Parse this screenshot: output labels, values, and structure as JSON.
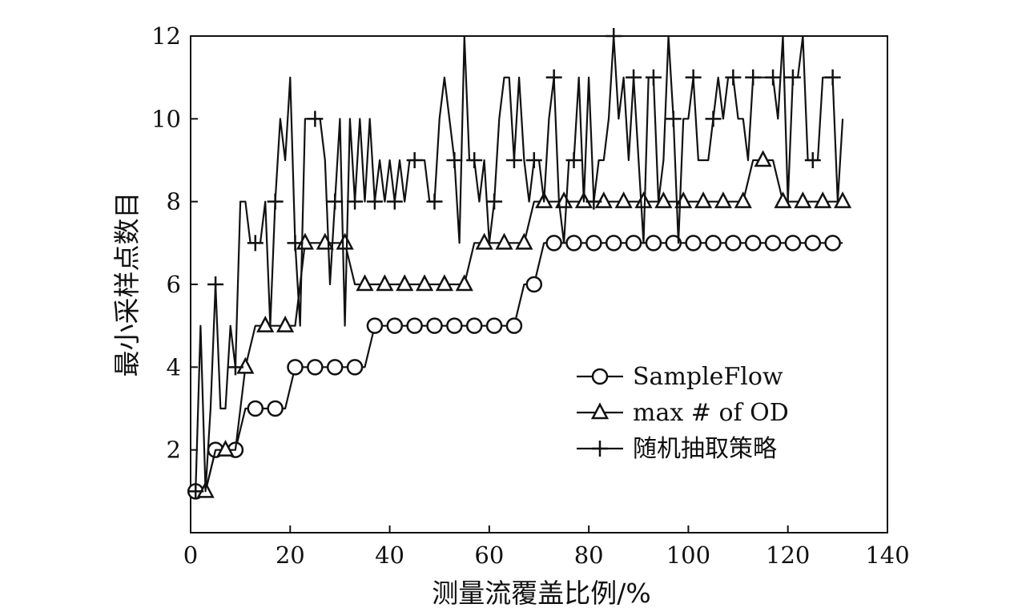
{
  "chart_data": {
    "type": "line",
    "xlabel": "测量流覆盖比例/%",
    "ylabel": "最小采样点数目",
    "xlim": [
      0,
      140
    ],
    "ylim": [
      0,
      12
    ],
    "xticks": [
      0,
      20,
      40,
      60,
      80,
      100,
      120,
      140
    ],
    "yticks": [
      2,
      4,
      6,
      8,
      10,
      12
    ],
    "xtick_labels": [
      "0",
      "20",
      "40",
      "60",
      "80",
      "100",
      "120",
      "140"
    ],
    "ytick_labels": [
      "2",
      "4",
      "6",
      "8",
      "10",
      "12"
    ],
    "grid": false,
    "legend_position": "bottom-right",
    "series": [
      {
        "name": "SampleFlow",
        "marker": "circle",
        "x": [
          1,
          3,
          5,
          7,
          9,
          11,
          13,
          15,
          17,
          19,
          21,
          23,
          25,
          27,
          29,
          31,
          33,
          35,
          37,
          39,
          41,
          43,
          45,
          47,
          49,
          51,
          53,
          55,
          57,
          59,
          61,
          63,
          65,
          67,
          69,
          71,
          73,
          75,
          77,
          79,
          81,
          83,
          85,
          87,
          89,
          91,
          93,
          95,
          97,
          99,
          101,
          103,
          105,
          107,
          109,
          111,
          113,
          115,
          117,
          119,
          121,
          123,
          125,
          127,
          129,
          131
        ],
        "values": [
          1,
          1,
          2,
          2,
          2,
          3,
          3,
          3,
          3,
          3,
          4,
          4,
          4,
          4,
          4,
          4,
          4,
          4,
          5,
          5,
          5,
          5,
          5,
          5,
          5,
          5,
          5,
          5,
          5,
          5,
          5,
          5,
          5,
          6,
          6,
          7,
          7,
          7,
          7,
          7,
          7,
          7,
          7,
          7,
          7,
          7,
          7,
          7,
          7,
          7,
          7,
          7,
          7,
          7,
          7,
          7,
          7,
          7,
          7,
          7,
          7,
          7,
          7,
          7,
          7,
          7
        ],
        "marker_every": 2,
        "marker_offset": 0
      },
      {
        "name": "max # of OD",
        "marker": "triangle",
        "x": [
          1,
          3,
          5,
          7,
          9,
          11,
          13,
          15,
          17,
          19,
          21,
          23,
          25,
          27,
          29,
          31,
          33,
          35,
          37,
          39,
          41,
          43,
          45,
          47,
          49,
          51,
          53,
          55,
          57,
          59,
          61,
          63,
          65,
          67,
          69,
          71,
          73,
          75,
          77,
          79,
          81,
          83,
          85,
          87,
          89,
          91,
          93,
          95,
          97,
          99,
          101,
          103,
          105,
          107,
          109,
          111,
          113,
          115,
          117,
          119,
          121,
          123,
          125,
          127,
          129,
          131
        ],
        "values": [
          1,
          1,
          2,
          2,
          2,
          4,
          5,
          5,
          5,
          5,
          5,
          7,
          7,
          7,
          7,
          7,
          6,
          6,
          6,
          6,
          6,
          6,
          6,
          6,
          6,
          6,
          6,
          6,
          7,
          7,
          7,
          7,
          7,
          7,
          8,
          8,
          8,
          8,
          8,
          8,
          8,
          8,
          8,
          8,
          8,
          8,
          8,
          8,
          8,
          8,
          8,
          8,
          8,
          8,
          8,
          8,
          9,
          9,
          9,
          8,
          8,
          8,
          8,
          8,
          8,
          8
        ],
        "marker_every": 2,
        "marker_offset": 1
      },
      {
        "name": "随机抽取策略",
        "marker": "plus",
        "x": [
          1,
          2,
          3,
          4,
          5,
          6,
          7,
          8,
          9,
          10,
          11,
          12,
          13,
          14,
          15,
          16,
          17,
          18,
          19,
          20,
          21,
          22,
          23,
          24,
          25,
          26,
          27,
          28,
          29,
          30,
          31,
          32,
          33,
          34,
          35,
          36,
          37,
          38,
          39,
          40,
          41,
          42,
          43,
          44,
          45,
          46,
          47,
          48,
          49,
          50,
          51,
          52,
          53,
          54,
          55,
          56,
          57,
          58,
          59,
          60,
          61,
          62,
          63,
          64,
          65,
          66,
          67,
          68,
          69,
          70,
          71,
          72,
          73,
          74,
          75,
          76,
          77,
          78,
          79,
          80,
          81,
          82,
          83,
          84,
          85,
          86,
          87,
          88,
          89,
          90,
          91,
          92,
          93,
          94,
          95,
          96,
          97,
          98,
          99,
          100,
          101,
          102,
          103,
          104,
          105,
          106,
          107,
          108,
          109,
          110,
          111,
          112,
          113,
          114,
          115,
          116,
          117,
          118,
          119,
          120,
          121,
          122,
          123,
          124,
          125,
          126,
          127,
          128,
          129,
          130,
          131
        ],
        "values": [
          1,
          5,
          1,
          3,
          6,
          3,
          3,
          5,
          4,
          8,
          8,
          7,
          7,
          7,
          8,
          5,
          8,
          10,
          9,
          11,
          7,
          5,
          10,
          10,
          10,
          10,
          9,
          6,
          8,
          10,
          5,
          10,
          8,
          10,
          8,
          10,
          8,
          9,
          8,
          9,
          8,
          9,
          8,
          9,
          9,
          9,
          9,
          8,
          8,
          10,
          11,
          10,
          9,
          7,
          12,
          9,
          9,
          8,
          9,
          7,
          8,
          10,
          11,
          11,
          9,
          11,
          9,
          8,
          9,
          9,
          8,
          10,
          11,
          8,
          7,
          9,
          9,
          11,
          8,
          11,
          8,
          9,
          9,
          10,
          12,
          10,
          11,
          9,
          11,
          9,
          7,
          11,
          11,
          8,
          9,
          12,
          10,
          7,
          10,
          10,
          11,
          9,
          9,
          9,
          10,
          11,
          10,
          11,
          11,
          10,
          10,
          9,
          11,
          11,
          11,
          11,
          11,
          10,
          12,
          8,
          11,
          11,
          12,
          9,
          9,
          9,
          11,
          11,
          11,
          8,
          10
        ],
        "marker_every": 4,
        "marker_offset": 0
      }
    ]
  }
}
